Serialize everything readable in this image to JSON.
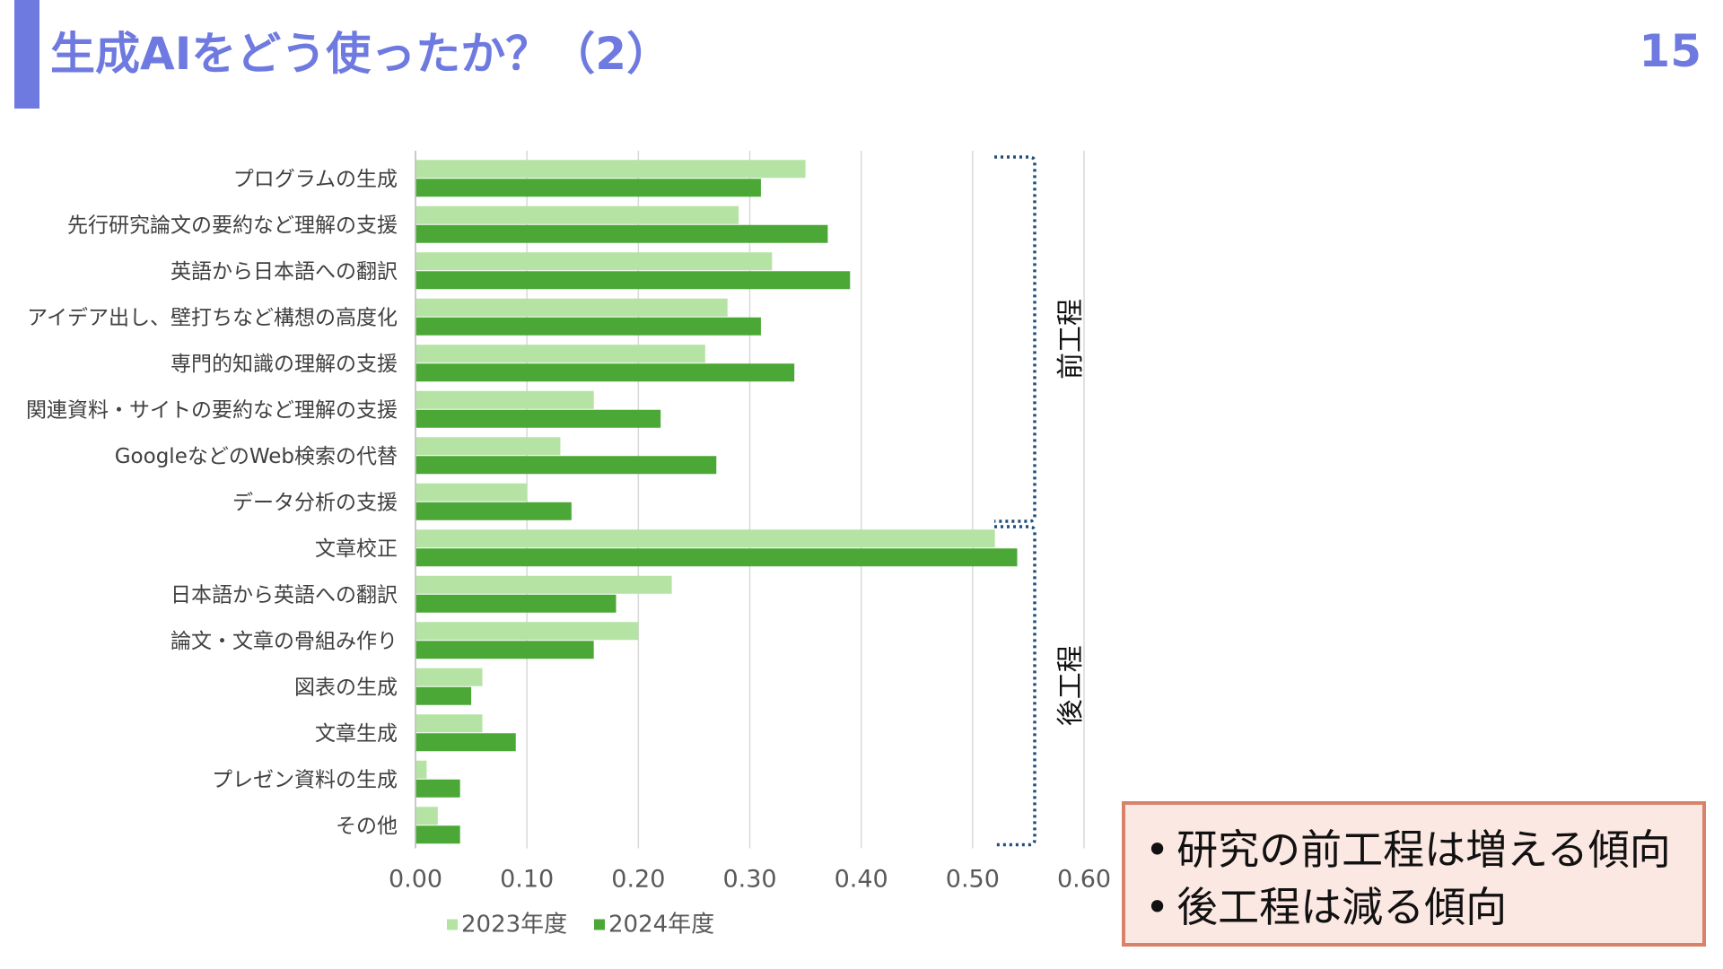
{
  "title": "生成AIをどう使ったか？（2）",
  "page_number": "15",
  "colors": {
    "accent": "#6F7AE0",
    "series_2023": "#B5E3A4",
    "series_2024": "#4BA836",
    "bracket": "#1F4E79",
    "gridline": "#D9D9D9",
    "callout_border": "#D9826A",
    "callout_fill": "#FCE8E2"
  },
  "chart_data": {
    "type": "bar",
    "orientation": "horizontal",
    "categories": [
      "プログラムの生成",
      "先行研究論文の要約など理解の支援",
      "英語から日本語への翻訳",
      "アイデア出し、壁打ちなど構想の高度化",
      "専門的知識の理解の支援",
      "関連資料・サイトの要約など理解の支援",
      "GoogleなどのWeb検索の代替",
      "データ分析の支援",
      "文章校正",
      "日本語から英語への翻訳",
      "論文・文章の骨組み作り",
      "図表の生成",
      "文章生成",
      "プレゼン資料の生成",
      "その他"
    ],
    "series": [
      {
        "name": "2023年度",
        "values": [
          0.35,
          0.29,
          0.32,
          0.28,
          0.26,
          0.16,
          0.13,
          0.1,
          0.52,
          0.23,
          0.2,
          0.06,
          0.06,
          0.01,
          0.02
        ]
      },
      {
        "name": "2024年度",
        "values": [
          0.31,
          0.37,
          0.39,
          0.31,
          0.34,
          0.22,
          0.27,
          0.14,
          0.54,
          0.18,
          0.16,
          0.05,
          0.09,
          0.04,
          0.04
        ]
      }
    ],
    "xlim": [
      0,
      0.6
    ],
    "xticks": [
      "0.00",
      "0.10",
      "0.20",
      "0.30",
      "0.40",
      "0.50",
      "0.60"
    ],
    "grid": true,
    "legend_position": "bottom",
    "groups": [
      {
        "label": "前工程",
        "from": 0,
        "to": 7
      },
      {
        "label": "後工程",
        "from": 8,
        "to": 14
      }
    ]
  },
  "callout": {
    "bullet": "•",
    "lines": [
      "研究の前工程は増える傾向",
      "後工程は減る傾向"
    ]
  }
}
